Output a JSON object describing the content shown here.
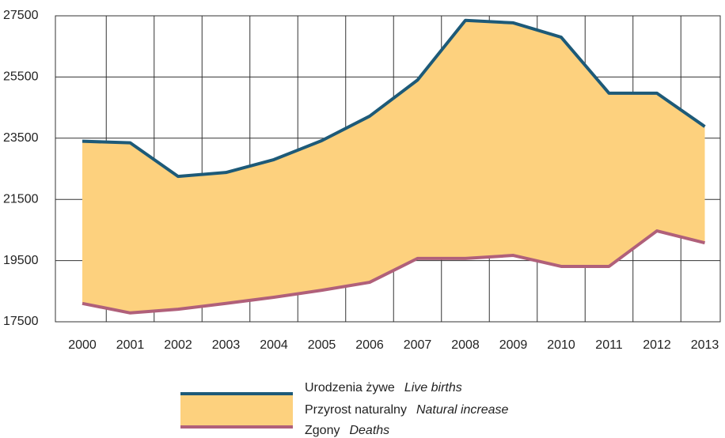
{
  "chart_data": {
    "type": "area-band",
    "categories": [
      "2000",
      "2001",
      "2002",
      "2003",
      "2004",
      "2005",
      "2006",
      "2007",
      "2008",
      "2009",
      "2010",
      "2011",
      "2012",
      "2013"
    ],
    "series": [
      {
        "name": "Urodzenia żywe",
        "name_en": "Live births",
        "color": "#1d5a78",
        "values": [
          23400,
          23350,
          22250,
          22380,
          22800,
          23420,
          24220,
          25400,
          27350,
          27270,
          26800,
          24970,
          24970,
          23880
        ]
      },
      {
        "name": "Zgony",
        "name_en": "Deaths",
        "color": "#b0607a",
        "values": [
          18100,
          17790,
          17910,
          18100,
          18300,
          18530,
          18790,
          19570,
          19570,
          19670,
          19310,
          19310,
          20470,
          20080
        ]
      }
    ],
    "band": {
      "name": "Przyrost naturalny",
      "name_en": "Natural increase",
      "color": "#fdd17e"
    },
    "ylim": [
      17500,
      27500
    ],
    "yticks": [
      17500,
      19500,
      21500,
      23500,
      25500,
      27500
    ],
    "grid": true
  }
}
